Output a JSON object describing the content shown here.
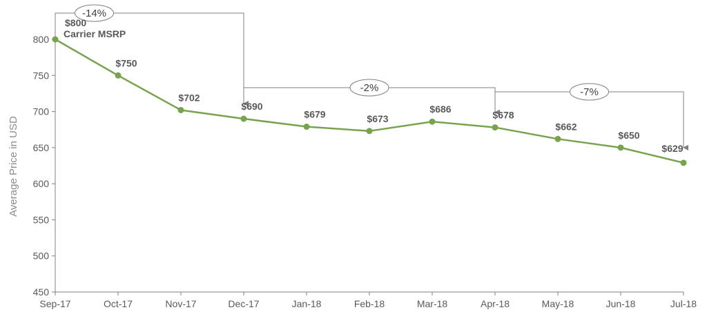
{
  "chart_data": {
    "type": "line",
    "title": "",
    "ylabel": "Average Price in USD",
    "xlabel": "",
    "categories": [
      "Sep-17",
      "Oct-17",
      "Nov-17",
      "Dec-17",
      "Jan-18",
      "Feb-18",
      "Mar-18",
      "Apr-18",
      "May-18",
      "Jun-18",
      "Jul-18"
    ],
    "series": [
      {
        "values": [
          800,
          750,
          702,
          690,
          679,
          673,
          686,
          678,
          662,
          650,
          629
        ],
        "color": "#77a34f",
        "data_labels": [
          "$800",
          "$750",
          "$702",
          "$690",
          "$679",
          "$673",
          "$686",
          "$678",
          "$662",
          "$650",
          "$629"
        ]
      }
    ],
    "ylim": [
      450,
      800
    ],
    "yticks": [
      450,
      500,
      550,
      600,
      650,
      700,
      750,
      800
    ],
    "grid": false,
    "legend": "none",
    "annotations": [
      {
        "text": "Carrier MSRP",
        "category": "Sep-17"
      }
    ],
    "change_callouts": [
      {
        "label": "-14%",
        "from": "Sep-17",
        "to": "Dec-17"
      },
      {
        "label": "-2%",
        "from": "Dec-17",
        "to": "Apr-18"
      },
      {
        "label": "-7%",
        "from": "Apr-18",
        "to": "Jul-18"
      }
    ],
    "colors": {
      "line": "#77a34f",
      "axis": "#7f7f7f",
      "callout": "#7f7f7f"
    }
  }
}
